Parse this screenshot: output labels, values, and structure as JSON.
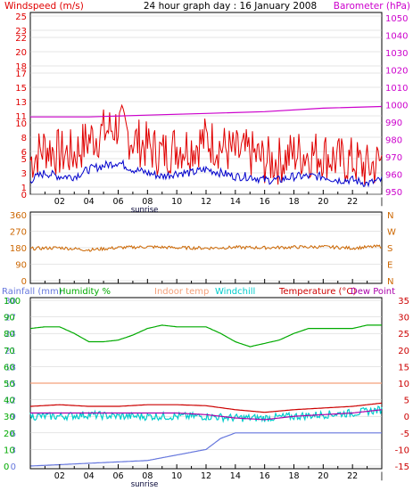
{
  "title": "24 hour graph day : 16 January 2008",
  "colors": {
    "wind": "#e00000",
    "wind_avg": "#0000cc",
    "barometer": "#cc00cc",
    "wind_dir": "#cc6600",
    "rainfall": "#6677dd",
    "humidity": "#00aa00",
    "indoor": "#f4a07a",
    "windchill": "#00cccc",
    "temperature": "#cc0000",
    "dewpoint": "#aa00aa",
    "frame": "#000000",
    "grid": "#cccccc"
  },
  "labels": {
    "windspeed": "Windspeed (m/s)",
    "barometer": "Barometer (hPa)",
    "rainfall": "Rainfall (mm)",
    "humidity": "Humidity %",
    "indoor": "Indoor temp",
    "windchill": "Windchill",
    "temperature": "Temperature (°C)",
    "dewpoint": "Dew Point",
    "sunrise": "sunrise"
  },
  "x_ticks": [
    "02",
    "04",
    "06",
    "08",
    "10",
    "12",
    "14",
    "16",
    "18",
    "20",
    "22"
  ],
  "chart_data": [
    {
      "type": "line",
      "title": "24 hour graph day : 16 January 2008",
      "x_range": [
        0,
        24
      ],
      "left_axis": {
        "label": "Windspeed (m/s)",
        "ticks": [
          0,
          1,
          3,
          5,
          6,
          8,
          10,
          11,
          13,
          15,
          17,
          18,
          20,
          22,
          23,
          25
        ],
        "range": [
          0,
          25
        ]
      },
      "right_axis": {
        "label": "Barometer (hPa)",
        "ticks": [
          950,
          960,
          970,
          980,
          990,
          1000,
          1010,
          1020,
          1030,
          1040,
          1050
        ],
        "range": [
          948.5,
          1051
        ]
      },
      "series": [
        {
          "name": "Windspeed (m/s)",
          "axis": "left",
          "x": [
            0,
            1,
            2,
            3,
            4,
            5,
            6,
            7,
            8,
            9,
            10,
            11,
            12,
            13,
            14,
            15,
            16,
            17,
            18,
            19,
            20,
            21,
            22,
            23,
            24
          ],
          "y": [
            4,
            6,
            5,
            5,
            7,
            8,
            9,
            7,
            6,
            5,
            6,
            6,
            7,
            6,
            5,
            5,
            4,
            4,
            5,
            5,
            5,
            4,
            4,
            3,
            4
          ]
        },
        {
          "name": "Barometer (hPa)",
          "axis": "right",
          "x": [
            0,
            4,
            8,
            12,
            16,
            20,
            24
          ],
          "y": [
            993,
            993,
            994,
            995,
            996,
            998,
            999
          ]
        }
      ]
    },
    {
      "type": "scatter",
      "left_axis": {
        "ticks": [
          0,
          90,
          180,
          270,
          360
        ],
        "range": [
          0,
          360
        ]
      },
      "right_axis": {
        "ticks": [
          "N",
          "W",
          "S",
          "E",
          "N"
        ]
      },
      "x_range": [
        0,
        24
      ],
      "series": [
        {
          "name": "Wind direction",
          "x": [
            0,
            2,
            4,
            6,
            8,
            10,
            12,
            14,
            16,
            18,
            20,
            22,
            24
          ],
          "y": [
            175,
            180,
            168,
            180,
            185,
            180,
            178,
            182,
            180,
            183,
            185,
            178,
            188
          ]
        }
      ]
    },
    {
      "type": "line",
      "x_range": [
        0,
        24
      ],
      "left_axis_outer": {
        "label": "Rainfall (mm)",
        "ticks": [
          0,
          3,
          6,
          9,
          12,
          15,
          18,
          21,
          24,
          27,
          30
        ],
        "range": [
          0,
          30
        ]
      },
      "left_axis_inner": {
        "label": "Humidity %",
        "ticks": [
          0,
          10,
          20,
          30,
          40,
          50,
          60,
          70,
          80,
          90,
          100
        ],
        "range": [
          0,
          100
        ]
      },
      "right_axis": {
        "label": "Temperature (°C)",
        "ticks": [
          -15,
          -10,
          -5,
          0,
          5,
          10,
          15,
          20,
          25,
          30,
          35
        ],
        "range": [
          -15,
          35
        ]
      },
      "series": [
        {
          "name": "Humidity %",
          "axis": "humidity",
          "x": [
            0,
            1,
            2,
            3,
            4,
            5,
            6,
            7,
            8,
            9,
            10,
            11,
            12,
            13,
            14,
            15,
            16,
            17,
            18,
            19,
            20,
            21,
            22,
            23,
            24
          ],
          "y": [
            83,
            84,
            84,
            80,
            75,
            75,
            76,
            79,
            83,
            85,
            84,
            84,
            84,
            80,
            75,
            72,
            74,
            76,
            80,
            83,
            83,
            83,
            83,
            85,
            85
          ]
        },
        {
          "name": "Indoor temp",
          "axis": "temp",
          "x": [
            0,
            4,
            8,
            12,
            16,
            20,
            24
          ],
          "y": [
            10,
            10,
            10,
            10,
            10,
            10,
            10
          ]
        },
        {
          "name": "Temperature (°C)",
          "axis": "temp",
          "x": [
            0,
            2,
            4,
            6,
            8,
            10,
            12,
            14,
            16,
            18,
            20,
            22,
            24
          ],
          "y": [
            3,
            3.5,
            3,
            3,
            3.5,
            3.5,
            3.2,
            2,
            1.2,
            2,
            2.5,
            3,
            4
          ]
        },
        {
          "name": "Windchill",
          "axis": "temp",
          "x": [
            0,
            2,
            4,
            6,
            8,
            10,
            12,
            14,
            16,
            18,
            20,
            22,
            24
          ],
          "y": [
            0,
            0,
            0.5,
            0,
            0,
            0,
            0,
            -0.5,
            -0.5,
            0,
            0.5,
            1,
            2
          ]
        },
        {
          "name": "Dew Point",
          "axis": "temp",
          "x": [
            0,
            2,
            4,
            6,
            8,
            10,
            12,
            14,
            16,
            18,
            20,
            22,
            24
          ],
          "y": [
            1,
            1,
            1,
            1,
            1,
            1,
            0.5,
            -0.5,
            -1,
            0,
            0.5,
            1,
            2
          ]
        },
        {
          "name": "Rainfall (mm)",
          "axis": "rain",
          "x": [
            0,
            4,
            8,
            10,
            12,
            13,
            14,
            16,
            18,
            20,
            22,
            24
          ],
          "y": [
            0,
            0.5,
            1,
            2,
            3,
            5,
            6,
            6,
            6,
            6,
            6,
            6
          ]
        }
      ]
    }
  ]
}
